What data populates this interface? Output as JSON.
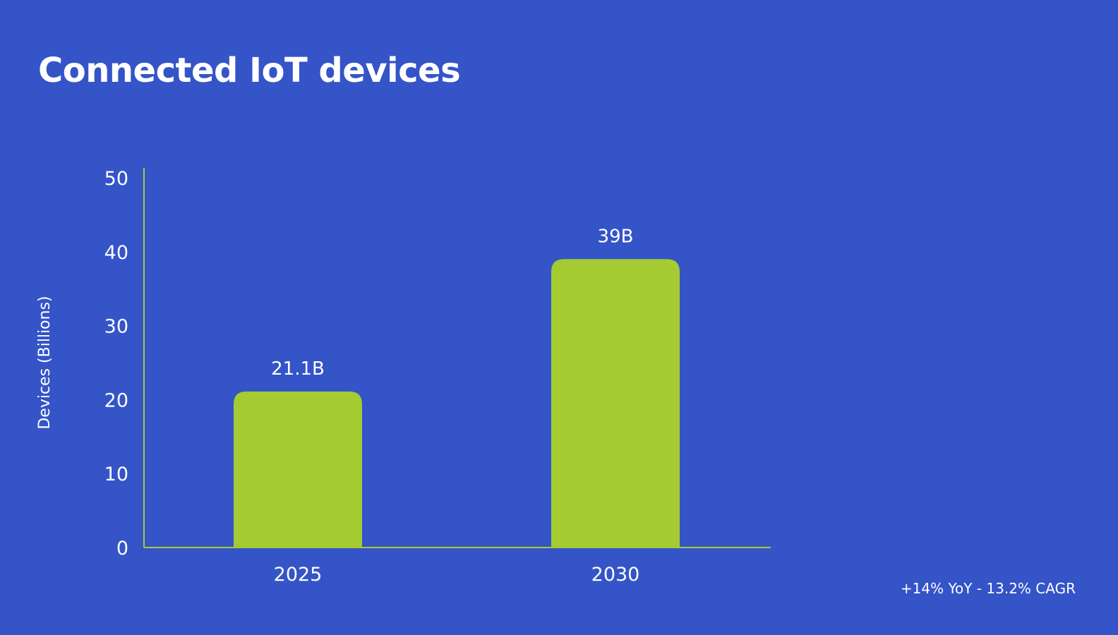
{
  "title": "Connected IoT devices",
  "footnote": "+14% YoY - 13.2% CAGR",
  "colors": {
    "background": "#3454c8",
    "bar": "#a4cb32",
    "axis": "#a4cb32",
    "text": "#ffffff"
  },
  "chart_data": {
    "type": "bar",
    "title": "Connected IoT devices",
    "xlabel": "",
    "ylabel": "Devices (Billions)",
    "categories": [
      "2025",
      "2030"
    ],
    "values": [
      21.1,
      39
    ],
    "data_labels": [
      "21.1B",
      "39B"
    ],
    "ylim": [
      0,
      50
    ],
    "yticks": [
      0,
      10,
      20,
      30,
      40,
      50
    ],
    "grid": false,
    "legend": "none"
  }
}
